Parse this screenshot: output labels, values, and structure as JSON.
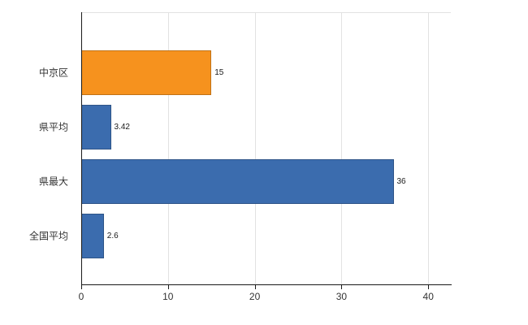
{
  "chart_data": {
    "type": "bar",
    "orientation": "horizontal",
    "title": "",
    "xlabel": "",
    "ylabel": "",
    "categories": [
      "中京区",
      "県平均",
      "県最大",
      "全国平均"
    ],
    "values": [
      15,
      3.42,
      36,
      2.6
    ],
    "value_labels": [
      "15",
      "3.42",
      "36",
      "2.6"
    ],
    "bar_colors": [
      "#f6921e",
      "#3b6cae",
      "#3b6cae",
      "#3b6cae"
    ],
    "xlim": [
      0,
      42.6
    ],
    "x_ticks": [
      0,
      10,
      20,
      30,
      40
    ],
    "grid": "vertical-only",
    "legend": "none",
    "colors": {
      "axis": "#1a1a1a",
      "grid": "#e2e2e2",
      "category_text": "#333333",
      "value_text": "#1a1a1a",
      "background": "#ffffff"
    }
  }
}
